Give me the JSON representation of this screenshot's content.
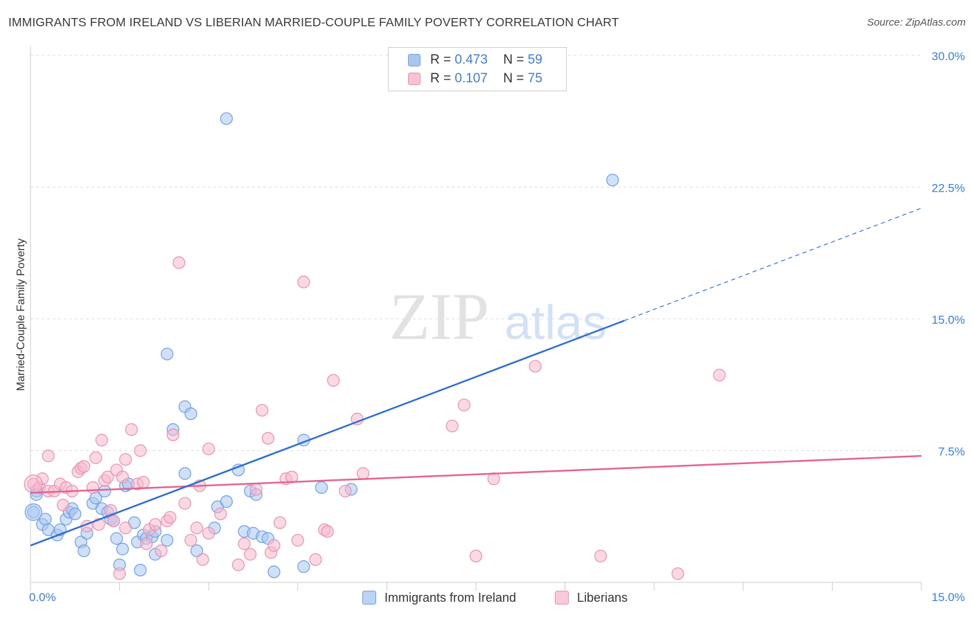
{
  "title": "IMMIGRANTS FROM IRELAND VS LIBERIAN MARRIED-COUPLE FAMILY POVERTY CORRELATION CHART",
  "source": "Source: ZipAtlas.com",
  "watermark": {
    "zip": "ZIP",
    "atlas": "atlas"
  },
  "legend": {
    "r_label": "R =",
    "n_label": "N =",
    "series": [
      {
        "r": "0.473",
        "n": "59"
      },
      {
        "r": "0.107",
        "n": "75"
      }
    ]
  },
  "colors": {
    "blue_fill": "#a9c6f1",
    "blue_stroke": "#6d9ee6",
    "blue_line": "#2f6fd0",
    "pink_fill": "#f6b9cc",
    "pink_stroke": "#eb8fae",
    "pink_line": "#e4648f",
    "tick_text": "#3d7dd8",
    "grid": "#dddddd"
  },
  "chart_data": {
    "type": "scatter",
    "title": "IMMIGRANTS FROM IRELAND VS LIBERIAN MARRIED-COUPLE FAMILY POVERTY CORRELATION CHART",
    "xlabel": "",
    "ylabel": "Married-Couple Family Poverty",
    "xlim": [
      0,
      15
    ],
    "ylim": [
      0,
      30
    ],
    "x_tick_labels": [
      "0.0%",
      "15.0%"
    ],
    "y_ticks": [
      7.5,
      15.0,
      22.5,
      30.0
    ],
    "y_tick_labels": [
      "7.5%",
      "15.0%",
      "22.5%",
      "30.0%"
    ],
    "legend_position": "top-center",
    "series": [
      {
        "name": "Immigrants from Ireland",
        "color": "blue",
        "trend": {
          "x0": 0,
          "y0": 2.1,
          "x1": 10.0,
          "y1": 14.9,
          "dashed_to_x": 15.0,
          "dashed_to_y": 21.3
        },
        "points": [
          [
            0.05,
            4.0
          ],
          [
            0.1,
            5.2
          ],
          [
            0.1,
            5.0
          ],
          [
            0.2,
            3.3
          ],
          [
            0.25,
            3.6
          ],
          [
            0.3,
            3.0
          ],
          [
            0.45,
            2.7
          ],
          [
            0.5,
            3.0
          ],
          [
            0.6,
            3.6
          ],
          [
            0.65,
            4.0
          ],
          [
            0.7,
            4.2
          ],
          [
            0.75,
            3.9
          ],
          [
            0.85,
            2.3
          ],
          [
            0.9,
            1.8
          ],
          [
            0.95,
            2.8
          ],
          [
            1.05,
            4.5
          ],
          [
            1.1,
            4.8
          ],
          [
            1.2,
            4.2
          ],
          [
            1.25,
            5.2
          ],
          [
            1.3,
            4.0
          ],
          [
            1.35,
            3.6
          ],
          [
            1.4,
            3.5
          ],
          [
            1.45,
            2.5
          ],
          [
            1.5,
            1.0
          ],
          [
            1.55,
            1.9
          ],
          [
            1.6,
            5.5
          ],
          [
            1.65,
            5.6
          ],
          [
            1.75,
            3.4
          ],
          [
            1.8,
            2.3
          ],
          [
            1.85,
            0.7
          ],
          [
            1.9,
            2.7
          ],
          [
            1.95,
            2.5
          ],
          [
            2.05,
            2.6
          ],
          [
            2.1,
            1.6
          ],
          [
            2.1,
            2.9
          ],
          [
            2.3,
            13.0
          ],
          [
            2.3,
            2.4
          ],
          [
            2.4,
            8.7
          ],
          [
            2.6,
            10.0
          ],
          [
            2.6,
            6.2
          ],
          [
            2.7,
            9.6
          ],
          [
            2.8,
            1.8
          ],
          [
            3.1,
            3.1
          ],
          [
            3.15,
            4.3
          ],
          [
            3.3,
            4.6
          ],
          [
            3.3,
            26.4
          ],
          [
            3.5,
            6.4
          ],
          [
            3.6,
            2.9
          ],
          [
            3.7,
            5.2
          ],
          [
            3.75,
            2.8
          ],
          [
            3.8,
            5.0
          ],
          [
            3.9,
            2.6
          ],
          [
            4.0,
            2.5
          ],
          [
            4.1,
            0.6
          ],
          [
            4.6,
            8.1
          ],
          [
            4.6,
            0.9
          ],
          [
            4.9,
            5.4
          ],
          [
            5.4,
            5.3
          ],
          [
            9.8,
            22.9
          ]
        ]
      },
      {
        "name": "Liberians",
        "color": "pink",
        "trend": {
          "x0": 0,
          "y0": 5.1,
          "x1": 15.0,
          "y1": 7.2
        },
        "points": [
          [
            0.05,
            5.6
          ],
          [
            0.15,
            5.4
          ],
          [
            0.3,
            5.2
          ],
          [
            0.3,
            7.2
          ],
          [
            0.4,
            5.2
          ],
          [
            0.5,
            5.6
          ],
          [
            0.55,
            4.4
          ],
          [
            0.6,
            5.4
          ],
          [
            0.7,
            5.2
          ],
          [
            0.8,
            6.3
          ],
          [
            0.85,
            6.5
          ],
          [
            0.9,
            6.6
          ],
          [
            0.95,
            3.2
          ],
          [
            1.05,
            5.4
          ],
          [
            1.1,
            7.1
          ],
          [
            1.15,
            3.3
          ],
          [
            1.2,
            8.1
          ],
          [
            1.25,
            5.8
          ],
          [
            1.3,
            6.0
          ],
          [
            1.35,
            4.1
          ],
          [
            1.4,
            3.5
          ],
          [
            1.45,
            6.4
          ],
          [
            1.5,
            0.5
          ],
          [
            1.55,
            6.0
          ],
          [
            1.6,
            7.0
          ],
          [
            1.6,
            3.1
          ],
          [
            1.7,
            8.7
          ],
          [
            1.8,
            5.6
          ],
          [
            1.85,
            7.5
          ],
          [
            1.9,
            5.7
          ],
          [
            1.95,
            2.2
          ],
          [
            2.0,
            3.0
          ],
          [
            2.1,
            3.3
          ],
          [
            2.2,
            1.8
          ],
          [
            2.3,
            3.5
          ],
          [
            2.35,
            3.7
          ],
          [
            2.4,
            8.4
          ],
          [
            2.5,
            18.2
          ],
          [
            2.6,
            4.5
          ],
          [
            2.7,
            2.4
          ],
          [
            2.8,
            3.1
          ],
          [
            2.85,
            5.5
          ],
          [
            2.9,
            1.3
          ],
          [
            3.0,
            7.6
          ],
          [
            3.0,
            2.8
          ],
          [
            3.2,
            3.9
          ],
          [
            3.5,
            1.0
          ],
          [
            3.6,
            2.2
          ],
          [
            3.7,
            1.6
          ],
          [
            3.8,
            5.3
          ],
          [
            3.9,
            9.8
          ],
          [
            4.0,
            8.2
          ],
          [
            4.05,
            1.7
          ],
          [
            4.1,
            2.1
          ],
          [
            4.2,
            3.4
          ],
          [
            4.3,
            5.9
          ],
          [
            4.4,
            6.0
          ],
          [
            4.5,
            2.4
          ],
          [
            4.6,
            17.1
          ],
          [
            4.8,
            1.3
          ],
          [
            4.95,
            3.0
          ],
          [
            5.0,
            2.9
          ],
          [
            5.1,
            11.5
          ],
          [
            5.3,
            5.2
          ],
          [
            5.5,
            9.3
          ],
          [
            5.6,
            6.2
          ],
          [
            7.1,
            8.9
          ],
          [
            7.3,
            10.1
          ],
          [
            7.5,
            1.5
          ],
          [
            7.8,
            5.9
          ],
          [
            8.5,
            12.3
          ],
          [
            9.6,
            1.5
          ],
          [
            10.9,
            0.5
          ],
          [
            11.6,
            11.8
          ],
          [
            0.2,
            5.9
          ]
        ]
      }
    ]
  },
  "bottom_legend": [
    "Immigrants from Ireland",
    "Liberians"
  ]
}
